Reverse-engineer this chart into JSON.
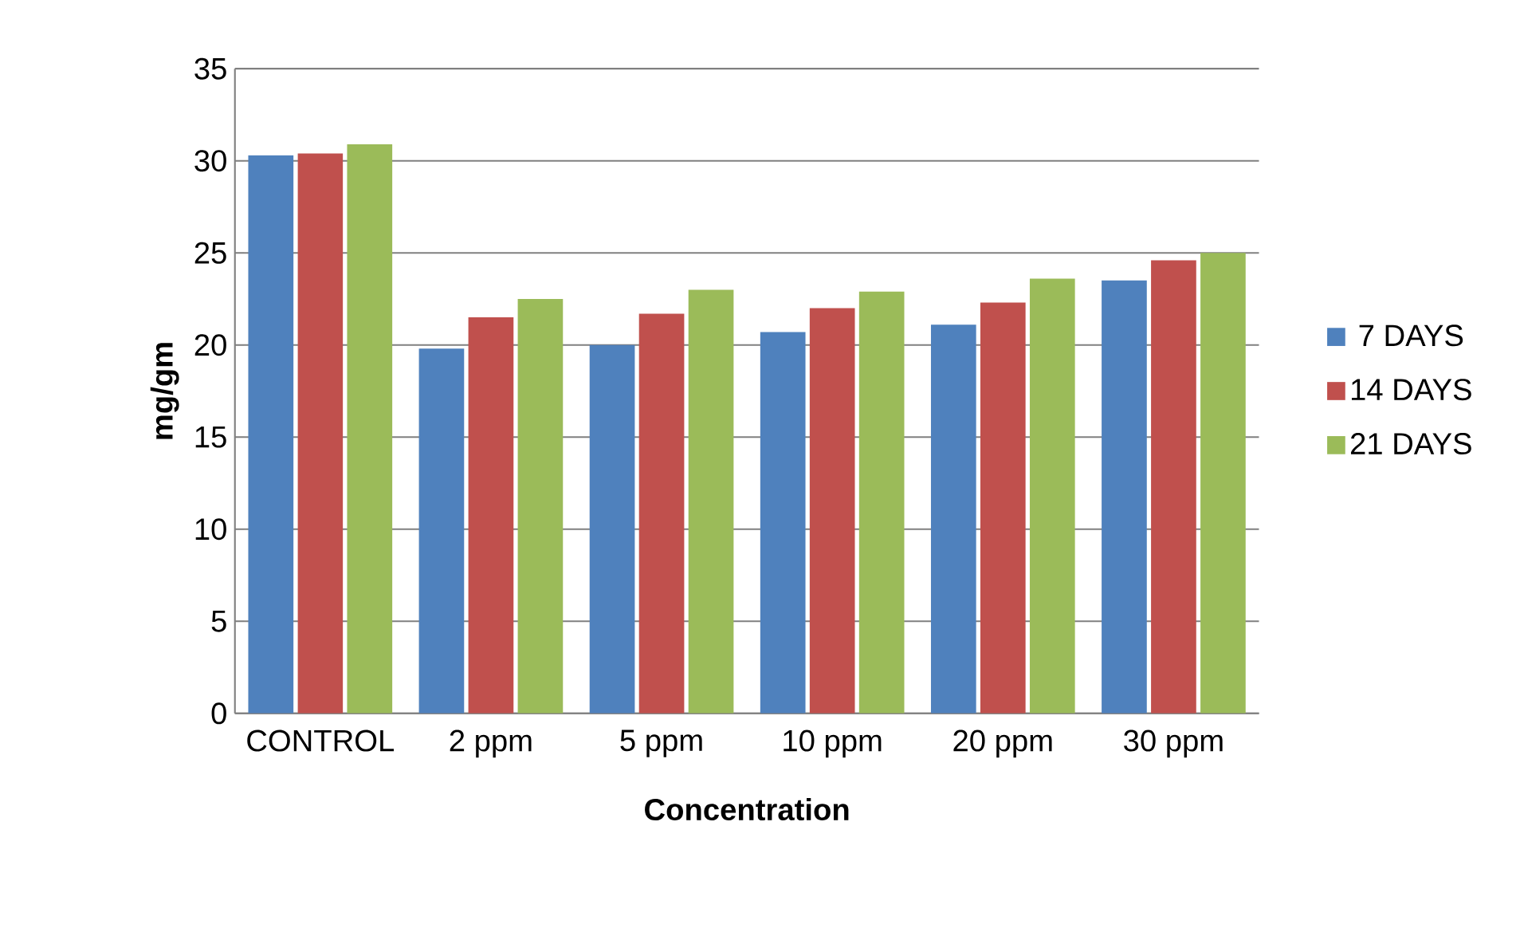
{
  "chart_data": {
    "type": "bar",
    "xlabel": "Concentration",
    "ylabel": "mg/gm",
    "categories": [
      "CONTROL",
      "2 ppm",
      "5 ppm",
      "10 ppm",
      "20 ppm",
      "30 ppm"
    ],
    "series": [
      {
        "name": "7 DAYS",
        "color": "#4f81bd",
        "values": [
          30.3,
          19.8,
          20.0,
          20.7,
          21.1,
          23.5
        ]
      },
      {
        "name": "14 DAYS",
        "color": "#c0504d",
        "values": [
          30.4,
          21.5,
          21.7,
          22.0,
          22.3,
          24.6
        ]
      },
      {
        "name": "21 DAYS",
        "color": "#9bbb59",
        "values": [
          30.9,
          22.5,
          23.0,
          22.9,
          23.6,
          25.0
        ]
      }
    ],
    "ylim": [
      0,
      35
    ],
    "yticks": [
      0,
      5,
      10,
      15,
      20,
      25,
      30,
      35
    ],
    "grid": "y",
    "legend": "right"
  }
}
